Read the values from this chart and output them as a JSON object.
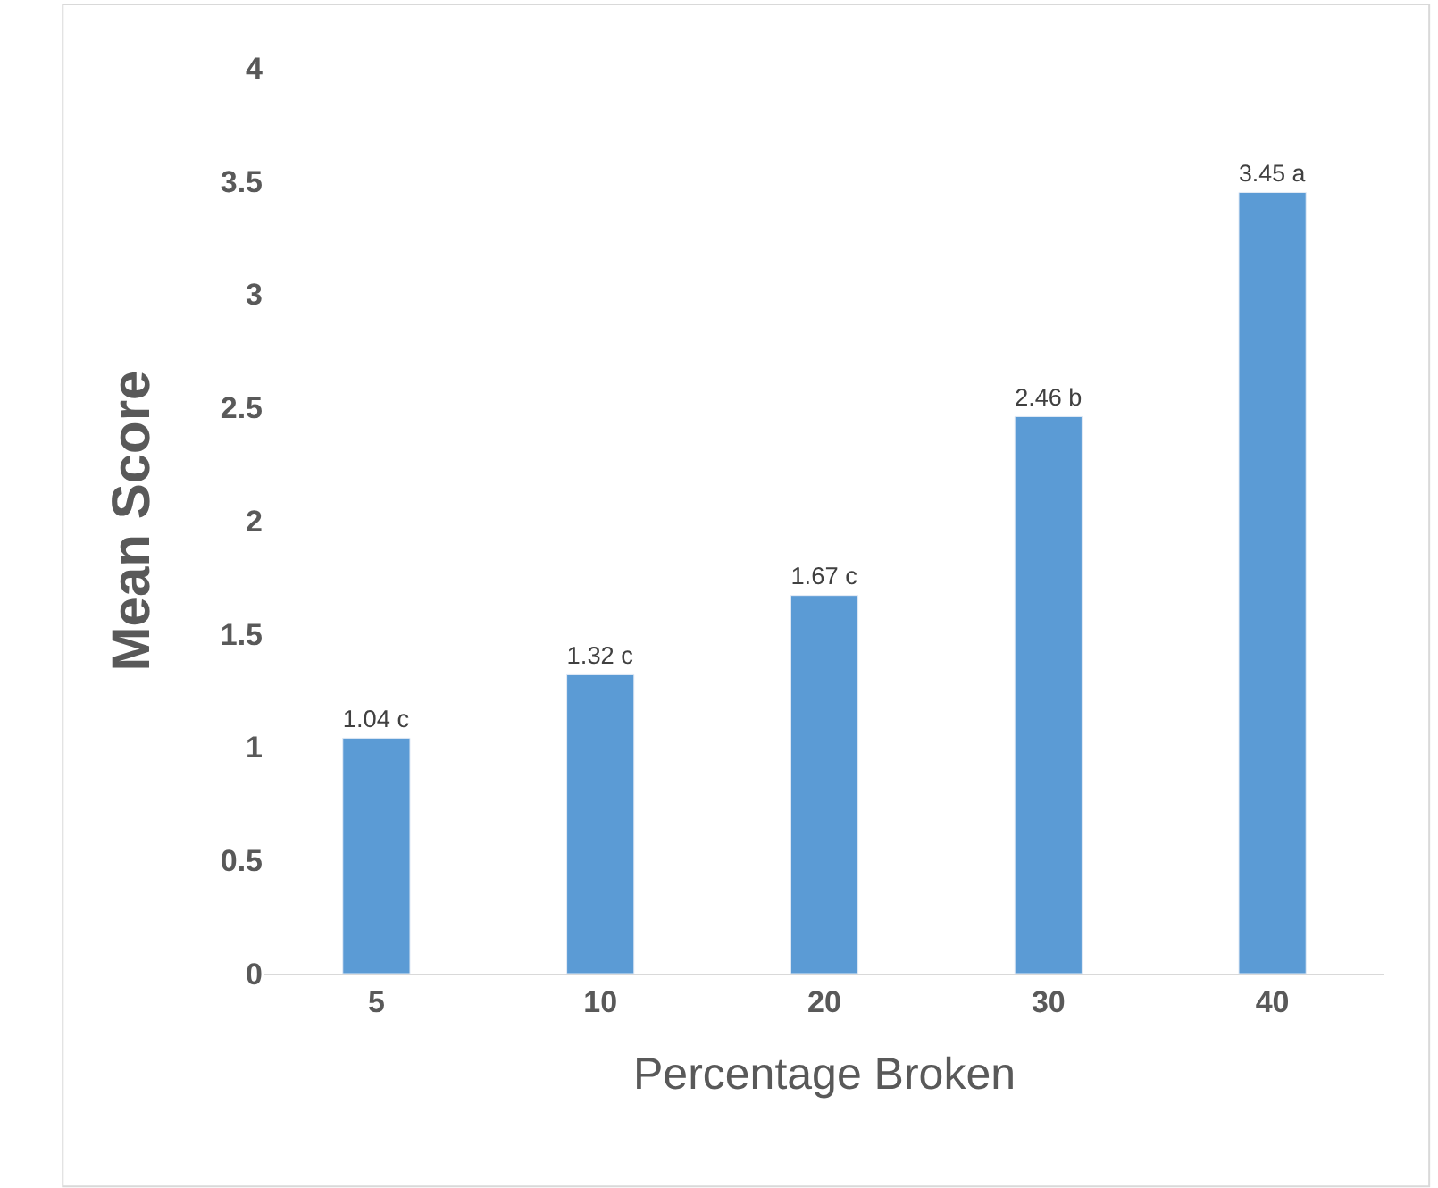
{
  "chart_data": {
    "type": "bar",
    "xlabel": "Percentage Broken",
    "ylabel": "Mean Score",
    "categories": [
      "5",
      "10",
      "20",
      "30",
      "40"
    ],
    "values": [
      1.04,
      1.32,
      1.67,
      2.46,
      3.45
    ],
    "value_labels": [
      "1.04 c",
      "1.32 c",
      "1.67 c",
      "2.46 b",
      "3.45 a"
    ],
    "color": "#5b9bd5",
    "ylim": [
      0,
      4
    ],
    "yticks": [
      0,
      0.5,
      1,
      1.5,
      2,
      2.5,
      3,
      3.5,
      4
    ],
    "grid": false,
    "legend": false
  }
}
